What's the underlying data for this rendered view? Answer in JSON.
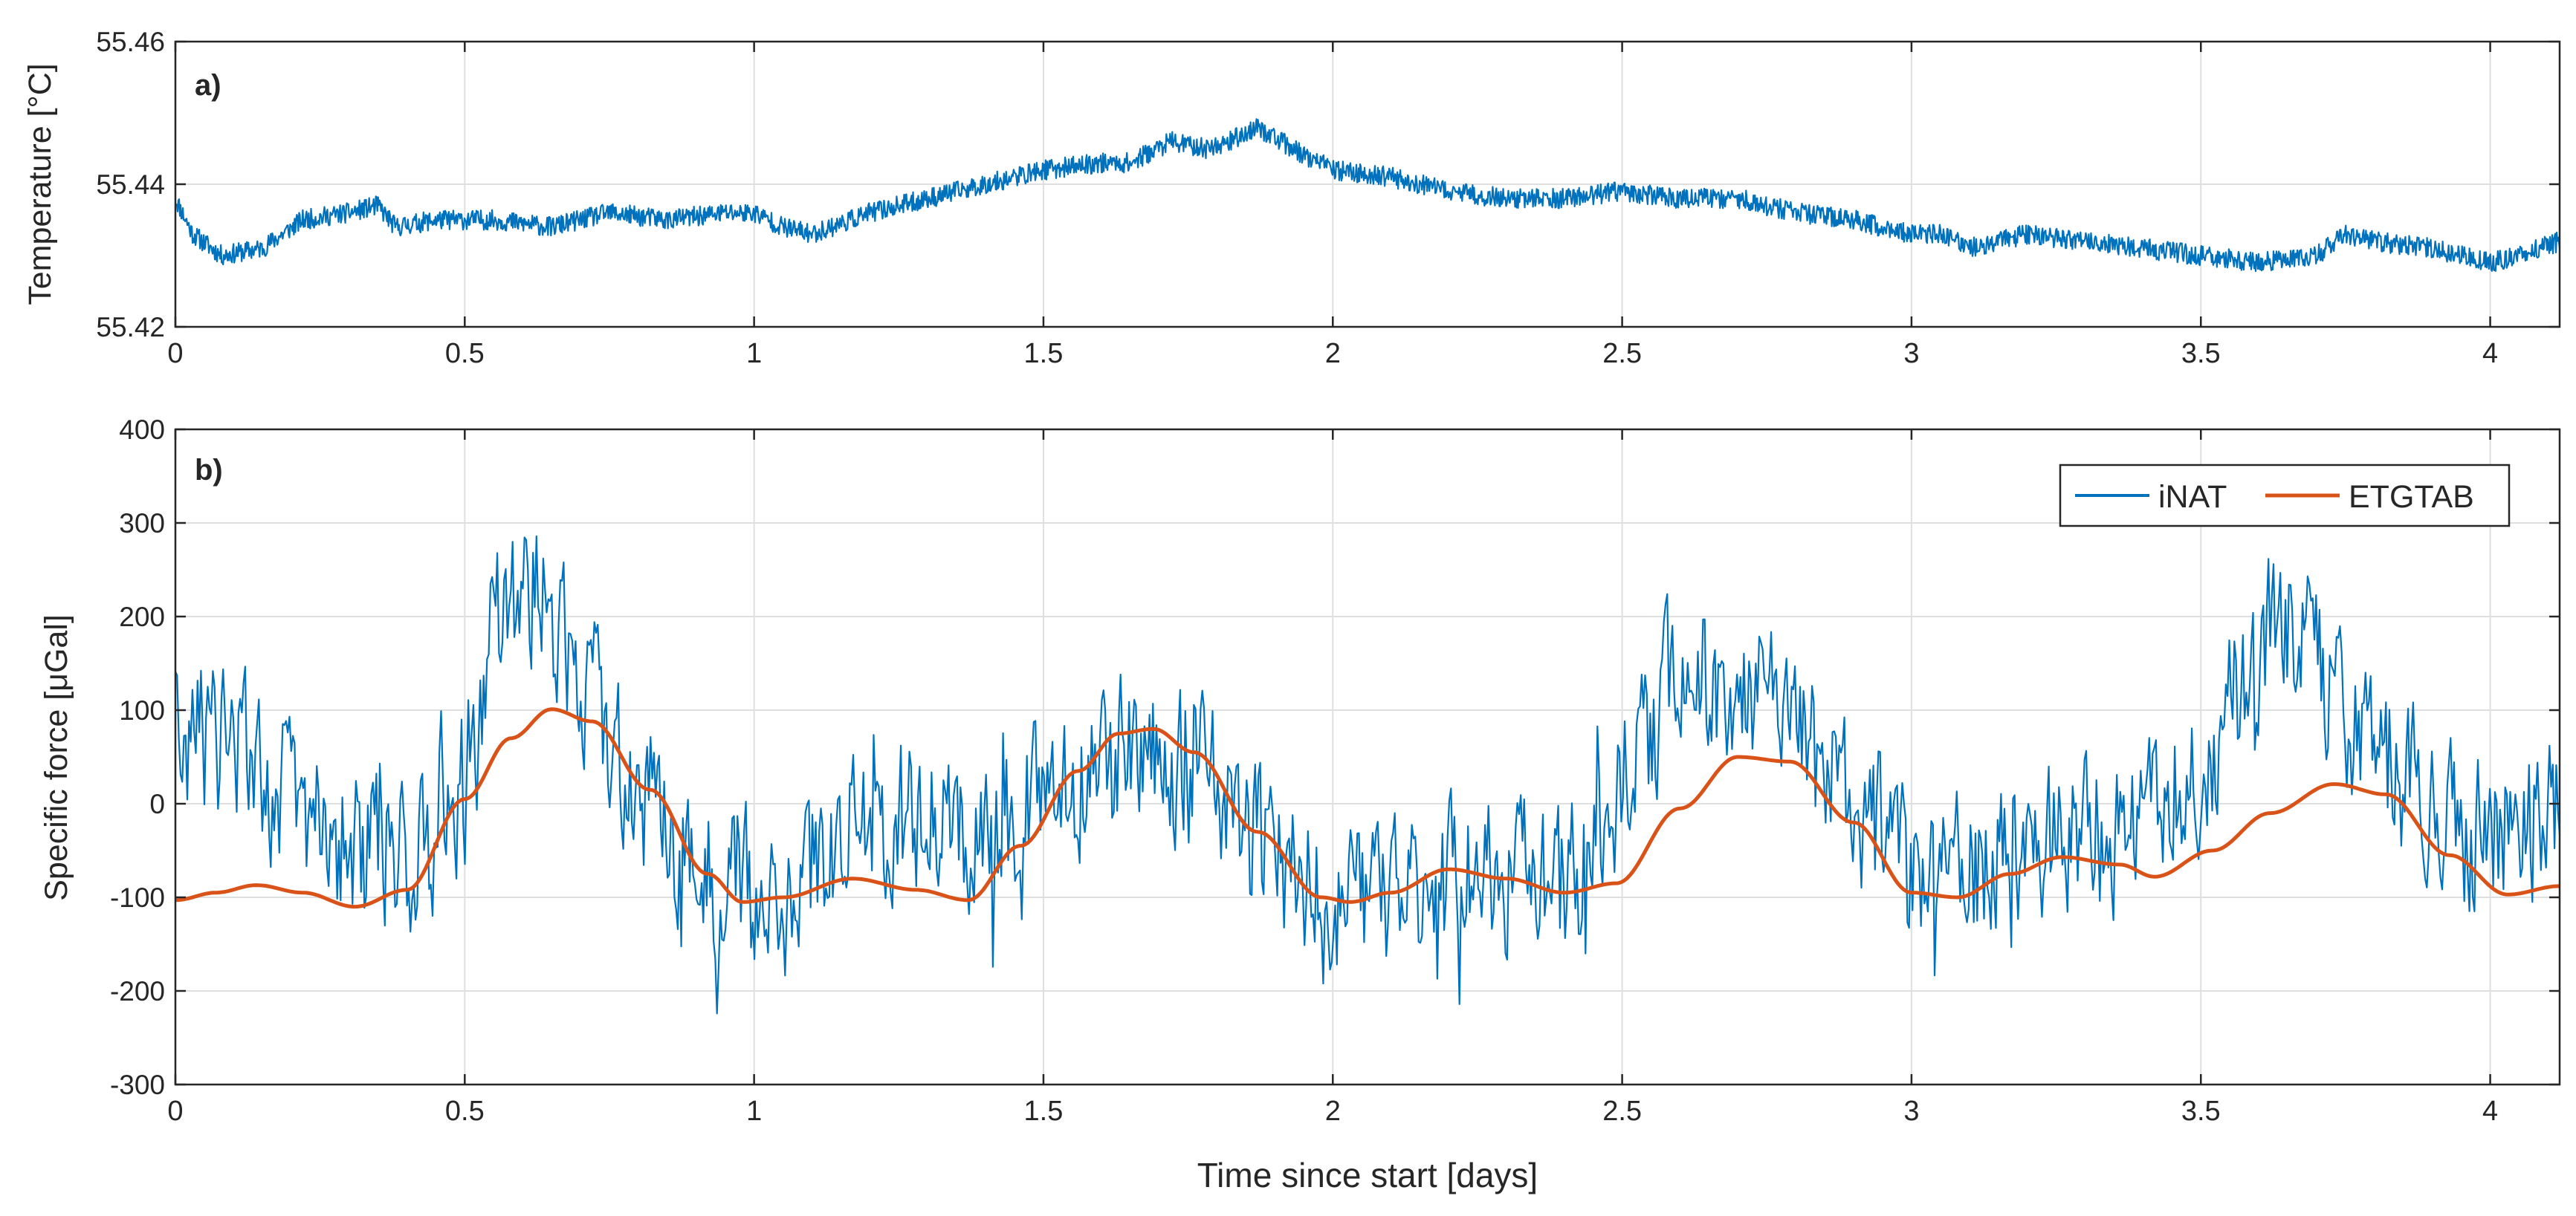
{
  "chart_data": [
    {
      "type": "line",
      "panel_label": "a)",
      "xlabel": "",
      "ylabel": "Temperature [°C]",
      "xlim": [
        0,
        4.12
      ],
      "ylim": [
        55.42,
        55.46
      ],
      "xticks": [
        0,
        0.5,
        1,
        1.5,
        2,
        2.5,
        3,
        3.5,
        4
      ],
      "xtick_labels": [
        "0",
        "0.5",
        "1",
        "1.5",
        "2",
        "2.5",
        "3",
        "3.5",
        "4"
      ],
      "yticks": [
        55.42,
        55.44,
        55.46
      ],
      "ytick_labels": [
        "55.42",
        "55.44",
        "55.46"
      ],
      "grid": true,
      "series": [
        {
          "name": "Temperature",
          "color": "#0072BD",
          "noise_band": 0.0014,
          "x": [
            0,
            0.03,
            0.08,
            0.15,
            0.22,
            0.3,
            0.35,
            0.38,
            0.45,
            0.55,
            0.65,
            0.75,
            0.85,
            0.95,
            1.0,
            1.05,
            1.1,
            1.2,
            1.3,
            1.4,
            1.5,
            1.6,
            1.65,
            1.72,
            1.78,
            1.82,
            1.87,
            1.93,
            2.0,
            2.1,
            2.2,
            2.3,
            2.4,
            2.5,
            2.6,
            2.7,
            2.8,
            2.9,
            3.0,
            3.05,
            3.1,
            3.2,
            3.3,
            3.4,
            3.5,
            3.6,
            3.7,
            3.75,
            3.8,
            3.9,
            4.0,
            4.05,
            4.12
          ],
          "y": [
            55.438,
            55.433,
            55.43,
            55.431,
            55.435,
            55.436,
            55.437,
            55.434,
            55.435,
            55.435,
            55.434,
            55.436,
            55.435,
            55.436,
            55.436,
            55.434,
            55.433,
            55.436,
            55.438,
            55.44,
            55.442,
            55.443,
            55.443,
            55.446,
            55.445,
            55.446,
            55.448,
            55.445,
            55.442,
            55.441,
            55.439,
            55.438,
            55.438,
            55.439,
            55.438,
            55.438,
            55.436,
            55.435,
            55.433,
            55.433,
            55.431,
            55.433,
            55.432,
            55.431,
            55.43,
            55.429,
            55.43,
            55.433,
            55.432,
            55.431,
            55.429,
            55.43,
            55.432
          ]
        }
      ]
    },
    {
      "type": "line",
      "panel_label": "b)",
      "xlabel": "Time since start [days]",
      "ylabel": "Specific force [μGal]",
      "xlim": [
        0,
        4.12
      ],
      "ylim": [
        -300,
        400
      ],
      "xticks": [
        0,
        0.5,
        1,
        1.5,
        2,
        2.5,
        3,
        3.5,
        4
      ],
      "xtick_labels": [
        "0",
        "0.5",
        "1",
        "1.5",
        "2",
        "2.5",
        "3",
        "3.5",
        "4"
      ],
      "yticks": [
        -300,
        -200,
        -100,
        0,
        100,
        200,
        300,
        400
      ],
      "ytick_labels": [
        "-300",
        "-200",
        "-100",
        "0",
        "100",
        "200",
        "300",
        "400"
      ],
      "grid": true,
      "legend_position": "top-right",
      "series": [
        {
          "name": "iNAT",
          "color": "#0072BD",
          "noise_amplitude": 75,
          "x": [
            0,
            0.1,
            0.2,
            0.3,
            0.4,
            0.5,
            0.55,
            0.6,
            0.65,
            0.7,
            0.8,
            0.9,
            1.0,
            1.1,
            1.2,
            1.3,
            1.4,
            1.5,
            1.6,
            1.7,
            1.8,
            1.9,
            2.0,
            2.1,
            2.2,
            2.3,
            2.4,
            2.5,
            2.6,
            2.7,
            2.8,
            2.9,
            3.0,
            3.1,
            3.2,
            3.3,
            3.4,
            3.5,
            3.6,
            3.65,
            3.7,
            3.8,
            3.9,
            4.0,
            4.12
          ],
          "y": [
            80,
            60,
            10,
            -50,
            -60,
            20,
            180,
            250,
            200,
            130,
            20,
            -60,
            -100,
            -70,
            -20,
            -10,
            -30,
            20,
            40,
            60,
            10,
            -70,
            -120,
            -110,
            -90,
            -80,
            -100,
            20,
            150,
            120,
            80,
            0,
            -60,
            -80,
            -50,
            -40,
            -20,
            40,
            180,
            200,
            150,
            60,
            0,
            -40,
            -10
          ]
        },
        {
          "name": "ETGTAB",
          "color": "#D95319",
          "x": [
            0,
            0.07,
            0.14,
            0.22,
            0.31,
            0.4,
            0.5,
            0.58,
            0.65,
            0.72,
            0.82,
            0.92,
            0.98,
            1.05,
            1.17,
            1.28,
            1.37,
            1.46,
            1.56,
            1.63,
            1.69,
            1.76,
            1.87,
            1.98,
            2.03,
            2.1,
            2.2,
            2.3,
            2.4,
            2.49,
            2.6,
            2.7,
            2.79,
            2.9,
            3.0,
            3.08,
            3.17,
            3.26,
            3.36,
            3.42,
            3.52,
            3.62,
            3.73,
            3.82,
            3.93,
            4.03,
            4.12
          ],
          "y": [
            -103,
            -95,
            -87,
            -95,
            -110,
            -92,
            5,
            70,
            101,
            88,
            15,
            -75,
            -105,
            -100,
            -80,
            -92,
            -103,
            -45,
            35,
            75,
            80,
            55,
            -30,
            -100,
            -105,
            -95,
            -70,
            -80,
            -95,
            -85,
            -5,
            50,
            45,
            -20,
            -95,
            -100,
            -75,
            -57,
            -65,
            -78,
            -50,
            -10,
            21,
            10,
            -55,
            -97,
            -88
          ]
        }
      ]
    }
  ]
}
